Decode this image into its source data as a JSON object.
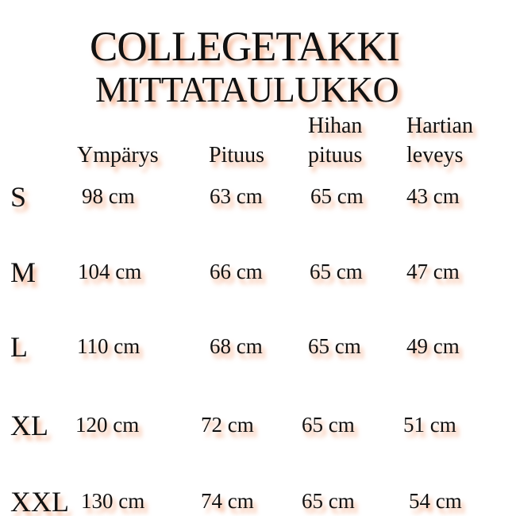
{
  "title": "COLLEGETAKKI",
  "subtitle": "MITTATAULUKKO",
  "shadow_color": "#f4a582",
  "headers": [
    {
      "line1": "",
      "line2": "Ympärys"
    },
    {
      "line1": "",
      "line2": "Pituus"
    },
    {
      "line1": "Hihan",
      "line2": "pituus"
    },
    {
      "line1": "Hartian",
      "line2": "leveys"
    }
  ],
  "rows": [
    {
      "size": "S",
      "values": [
        "98 cm",
        "63 cm",
        "65 cm",
        "43 cm"
      ]
    },
    {
      "size": "M",
      "values": [
        "104 cm",
        "66 cm",
        "65 cm",
        "47 cm"
      ]
    },
    {
      "size": "L",
      "values": [
        "110 cm",
        "68 cm",
        "65 cm",
        "49 cm"
      ]
    },
    {
      "size": "XL",
      "values": [
        "120 cm",
        "72 cm",
        "65 cm",
        "51 cm"
      ]
    },
    {
      "size": "XXL",
      "values": [
        "130 cm",
        "74 cm",
        "65 cm",
        "54 cm"
      ]
    }
  ]
}
